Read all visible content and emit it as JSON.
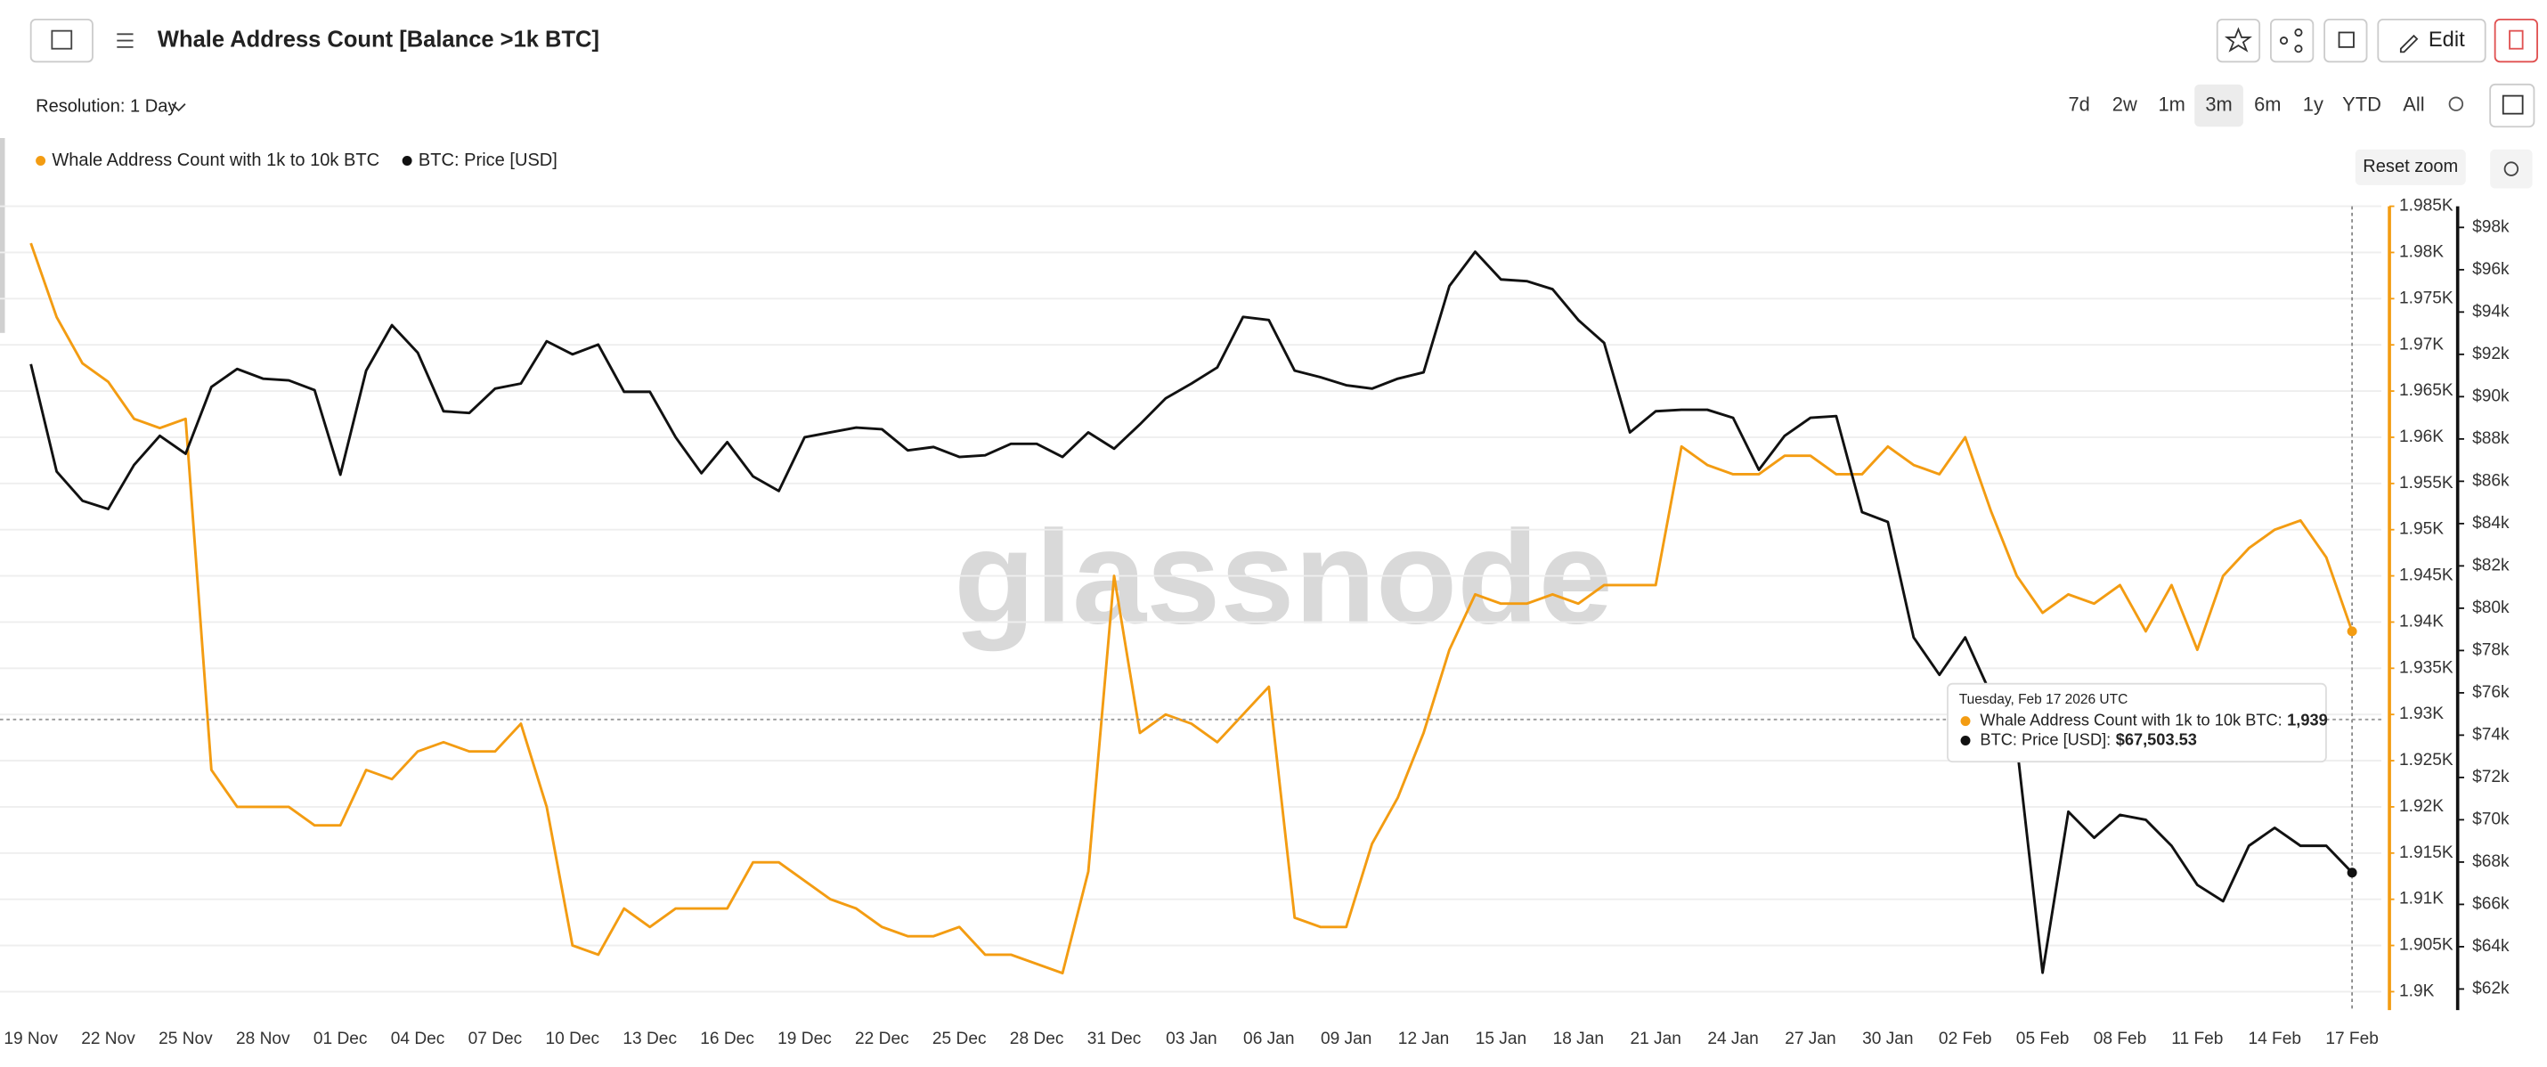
{
  "header": {
    "title": "Whale Address Count [Balance >1k BTC]",
    "edit": "Edit"
  },
  "toolbar": {
    "resolution": "Resolution: 1 Day",
    "ranges": [
      "7d",
      "2w",
      "1m",
      "3m",
      "6m",
      "1y",
      "YTD",
      "All"
    ],
    "selected_range": 3,
    "reset_zoom": "Reset zoom"
  },
  "chart_data": {
    "type": "line",
    "watermark": "glassnode",
    "categories": [
      "19 Nov",
      null,
      null,
      "22 Nov",
      null,
      null,
      "25 Nov",
      null,
      null,
      "28 Nov",
      null,
      null,
      "01 Dec",
      null,
      null,
      "04 Dec",
      null,
      null,
      "07 Dec",
      null,
      null,
      "10 Dec",
      null,
      null,
      "13 Dec",
      null,
      null,
      "16 Dec",
      null,
      null,
      "19 Dec",
      null,
      null,
      "22 Dec",
      null,
      null,
      "25 Dec",
      null,
      null,
      "28 Dec",
      null,
      null,
      "31 Dec",
      null,
      null,
      "03 Jan",
      null,
      null,
      "06 Jan",
      null,
      null,
      "09 Jan",
      null,
      null,
      "12 Jan",
      null,
      null,
      "15 Jan",
      null,
      null,
      "18 Jan",
      null,
      null,
      "21 Jan",
      null,
      null,
      "24 Jan",
      null,
      null,
      "27 Jan",
      null,
      null,
      "30 Jan",
      null,
      null,
      "02 Feb",
      null,
      null,
      "05 Feb",
      null,
      null,
      "08 Feb",
      null,
      null,
      "11 Feb",
      null,
      null,
      "14 Feb",
      null,
      null,
      "17 Feb"
    ],
    "series": [
      {
        "name": "Whale Address Count with 1k to 10k BTC",
        "color": "#f39c12",
        "axis": "y",
        "values": [
          1981,
          1973,
          1968,
          1966,
          1962,
          1961,
          1962,
          1924,
          1920,
          1920,
          1920,
          1918,
          1918,
          1924,
          1923,
          1926,
          1927,
          1926,
          1926,
          1929,
          1920,
          1905,
          1904,
          1909,
          1907,
          1909,
          1909,
          1909,
          1914,
          1914,
          1912,
          1910,
          1909,
          1907,
          1906,
          1906,
          1907,
          1904,
          1904,
          1903,
          1902,
          1913,
          1945,
          1928,
          1930,
          1929,
          1927,
          1930,
          1933,
          1908,
          1907,
          1907,
          1916,
          1921,
          1928,
          1937,
          1943,
          1942,
          1942,
          1943,
          1942,
          1944,
          1944,
          1944,
          1959,
          1957,
          1956,
          1956,
          1958,
          1958,
          1956,
          1956,
          1959,
          1957,
          1956,
          1960,
          1952,
          1945,
          1941,
          1943,
          1942,
          1944,
          1939,
          1944,
          1937,
          1945,
          1948,
          1950,
          1951,
          1947,
          1939
        ]
      },
      {
        "name": "BTC: Price [USD]",
        "color": "#111111",
        "axis": "y2",
        "values": [
          91540,
          86460,
          85080,
          84690,
          86770,
          88150,
          87300,
          90460,
          91310,
          90850,
          90770,
          90310,
          86310,
          91230,
          93380,
          92080,
          89310,
          89230,
          90380,
          90620,
          92620,
          92000,
          92460,
          90230,
          90230,
          88080,
          86380,
          87850,
          86230,
          85540,
          88080,
          88310,
          88540,
          88460,
          87460,
          87620,
          87150,
          87230,
          87770,
          87770,
          87150,
          88310,
          87540,
          88690,
          89920,
          90620,
          91380,
          93770,
          93620,
          91230,
          90920,
          90540,
          90380,
          90850,
          91150,
          95230,
          96850,
          95540,
          95460,
          95080,
          93620,
          92540,
          88310,
          89310,
          89380,
          89380,
          89000,
          86540,
          88150,
          89000,
          89080,
          84540,
          84080,
          78620,
          76850,
          78620,
          75920,
          73540,
          62770,
          70380,
          69150,
          70230,
          70000,
          68770,
          66920,
          66150,
          68770,
          69620,
          68770,
          68770,
          67503.53
        ]
      }
    ],
    "ylim": [
      1898,
      1985
    ],
    "yticks": [
      {
        "value": 1900,
        "label": "1.9K"
      },
      {
        "value": 1905,
        "label": "1.905K"
      },
      {
        "value": 1910,
        "label": "1.91K"
      },
      {
        "value": 1915,
        "label": "1.915K"
      },
      {
        "value": 1920,
        "label": "1.92K"
      },
      {
        "value": 1925,
        "label": "1.925K"
      },
      {
        "value": 1930,
        "label": "1.93K"
      },
      {
        "value": 1935,
        "label": "1.935K"
      },
      {
        "value": 1940,
        "label": "1.94K"
      },
      {
        "value": 1945,
        "label": "1.945K"
      },
      {
        "value": 1950,
        "label": "1.95K"
      },
      {
        "value": 1955,
        "label": "1.955K"
      },
      {
        "value": 1960,
        "label": "1.96K"
      },
      {
        "value": 1965,
        "label": "1.965K"
      },
      {
        "value": 1970,
        "label": "1.97K"
      },
      {
        "value": 1975,
        "label": "1.975K"
      },
      {
        "value": 1980,
        "label": "1.98K"
      },
      {
        "value": 1985,
        "label": "1.985K"
      }
    ],
    "y2lim": [
      61000,
      99000
    ],
    "y2ticks": [
      {
        "value": 62000,
        "label": "$62k"
      },
      {
        "value": 64000,
        "label": "$64k"
      },
      {
        "value": 66000,
        "label": "$66k"
      },
      {
        "value": 68000,
        "label": "$68k"
      },
      {
        "value": 70000,
        "label": "$70k"
      },
      {
        "value": 72000,
        "label": "$72k"
      },
      {
        "value": 74000,
        "label": "$74k"
      },
      {
        "value": 76000,
        "label": "$76k"
      },
      {
        "value": 78000,
        "label": "$78k"
      },
      {
        "value": 80000,
        "label": "$80k"
      },
      {
        "value": 82000,
        "label": "$82k"
      },
      {
        "value": 84000,
        "label": "$84k"
      },
      {
        "value": 86000,
        "label": "$86k"
      },
      {
        "value": 88000,
        "label": "$88k"
      },
      {
        "value": 90000,
        "label": "$90k"
      },
      {
        "value": 92000,
        "label": "$92k"
      },
      {
        "value": 94000,
        "label": "$94k"
      },
      {
        "value": 96000,
        "label": "$96k"
      },
      {
        "value": 98000,
        "label": "$98k"
      }
    ],
    "grid": true,
    "legend": "top-left",
    "tooltip": {
      "title": "Tuesday, Feb 17 2026 UTC",
      "rows": [
        {
          "label": "Whale Address Count with 1k to 10k BTC:",
          "value_label": "1,939"
        },
        {
          "label": "BTC: Price [USD]:",
          "value_label": "$67,503.53"
        }
      ]
    }
  }
}
